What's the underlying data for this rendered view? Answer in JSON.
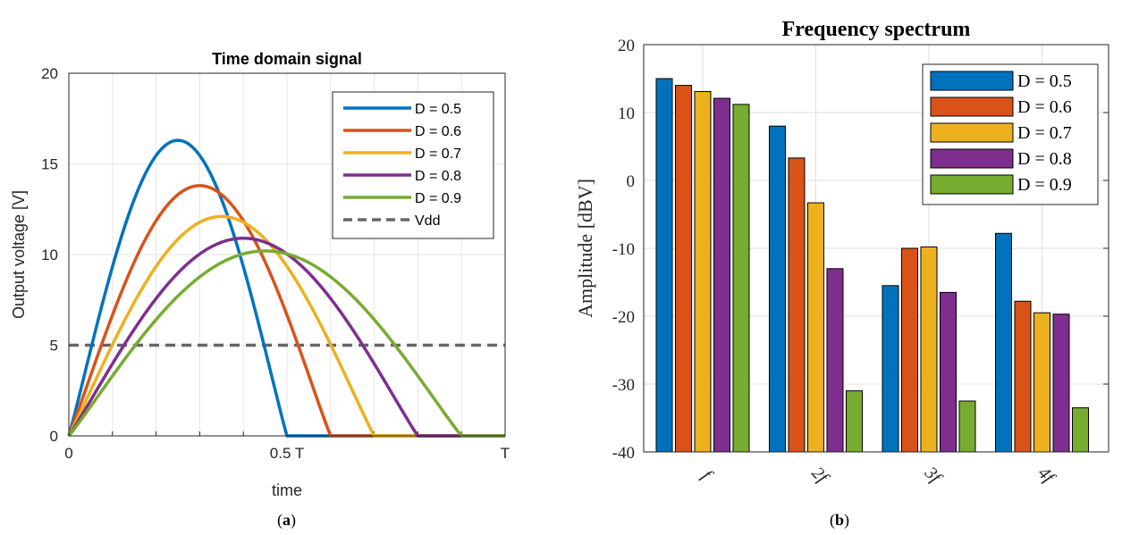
{
  "chart_data": [
    {
      "type": "line",
      "title": "Time domain signal",
      "xlabel": "time",
      "ylabel": "Output voltage [V]",
      "xlim": [
        0,
        1
      ],
      "ylim": [
        0,
        20
      ],
      "yticks": [
        "0",
        "5",
        "10",
        "15",
        "20"
      ],
      "xticks": [
        {
          "value": 0,
          "label": "0"
        },
        {
          "value": 0.5,
          "label": "0.5 T"
        },
        {
          "value": 1,
          "label": "T"
        }
      ],
      "grid": true,
      "legend_position": "top-right",
      "series": [
        {
          "name": "D = 0.5",
          "duty": 0.5,
          "peak_x": 0.25,
          "peak_y": 16.3,
          "color": "#0072BD"
        },
        {
          "name": "D = 0.6",
          "duty": 0.6,
          "peak_x": 0.3,
          "peak_y": 13.8,
          "color": "#D95319"
        },
        {
          "name": "D = 0.7",
          "duty": 0.7,
          "peak_x": 0.35,
          "peak_y": 12.1,
          "color": "#EDB120"
        },
        {
          "name": "D = 0.8",
          "duty": 0.8,
          "peak_x": 0.4,
          "peak_y": 10.9,
          "color": "#7E2F8E"
        },
        {
          "name": "D = 0.9",
          "duty": 0.9,
          "peak_x": 0.45,
          "peak_y": 10.2,
          "color": "#77AC30"
        }
      ],
      "reference_line": {
        "name": "Vdd",
        "y": 5,
        "color": "#666666",
        "style": "dashed"
      }
    },
    {
      "type": "bar",
      "title": "Frequency spectrum",
      "xlabel": "",
      "ylabel": "Amplitude [dBV]",
      "ylim": [
        -40,
        20
      ],
      "yticks": [
        "-40",
        "-30",
        "-20",
        "-10",
        "0",
        "10",
        "20"
      ],
      "categories": [
        "f",
        "2f",
        "3f",
        "4f"
      ],
      "grid": true,
      "legend_position": "top-right",
      "series": [
        {
          "name": "D = 0.5",
          "color": "#0072BD",
          "values": [
            15.0,
            8.0,
            -15.5,
            -7.8
          ]
        },
        {
          "name": "D = 0.6",
          "color": "#D95319",
          "values": [
            14.0,
            3.3,
            -10.0,
            -17.8
          ]
        },
        {
          "name": "D = 0.7",
          "color": "#EDB120",
          "values": [
            13.1,
            -3.3,
            -9.8,
            -19.5
          ]
        },
        {
          "name": "D = 0.8",
          "color": "#7E2F8E",
          "values": [
            12.1,
            -13.0,
            -16.5,
            -19.7
          ]
        },
        {
          "name": "D = 0.9",
          "color": "#77AC30",
          "values": [
            11.2,
            -31.0,
            -32.5,
            -33.5
          ]
        }
      ]
    }
  ],
  "captions": [
    "a",
    "b"
  ]
}
